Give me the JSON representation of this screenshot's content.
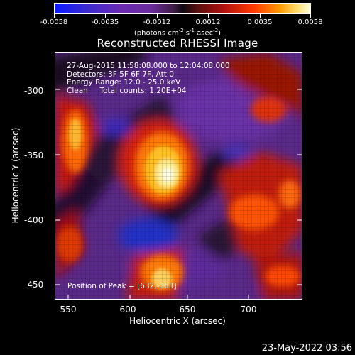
{
  "colorbar": {
    "ticks": [
      "-0.0058",
      "-0.0035",
      "-0.0012",
      "0.0012",
      "0.0035",
      "0.0058"
    ],
    "units": "(photons cm-2 s-1 asec-2)"
  },
  "title": "Reconstructed RHESSI Image",
  "info": {
    "time": "27-Aug-2015 11:58:08.000 to 12:04:08.000",
    "detectors": "Detectors: 3F 5F 6F 7F, Att 0",
    "energy": "Energy Range: 12.0 - 25.0 keV",
    "clean": "Clean     Total counts: 1.20E+04",
    "peak": "Position of Peak = [632,-363]"
  },
  "axes": {
    "xlabel": "Heliocentric X (arcsec)",
    "ylabel": "Heliocentric Y (arcsec)",
    "xticks": [
      "550",
      "600",
      "650",
      "700"
    ],
    "yticks": [
      "-300",
      "-350",
      "-400",
      "-450"
    ],
    "xrange": [
      548,
      740
    ],
    "yrange": [
      -463,
      -275
    ]
  },
  "footer": "23-May-2022 03:56"
}
